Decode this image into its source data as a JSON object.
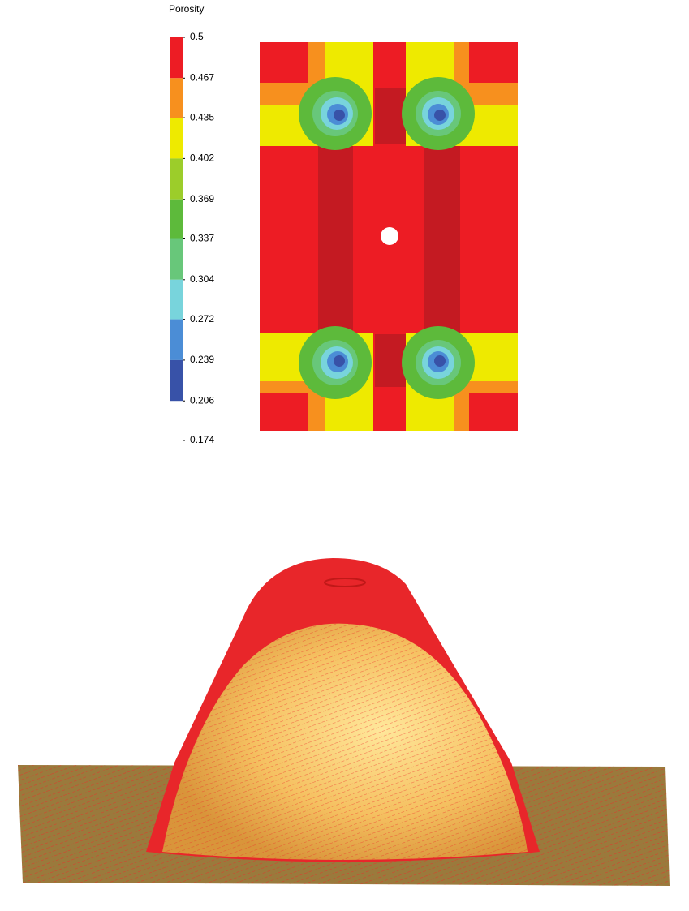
{
  "colorbar": {
    "title": "Porosity",
    "ticks": [
      0.5,
      0.467,
      0.435,
      0.402,
      0.369,
      0.337,
      0.304,
      0.272,
      0.239,
      0.206,
      0.174
    ],
    "colors": [
      "#ed1c24",
      "#f7901e",
      "#eeea00",
      "#9ccd2a",
      "#5dba3b",
      "#68c77a",
      "#78d4dc",
      "#4b8dd6",
      "#3852a8"
    ]
  }
}
